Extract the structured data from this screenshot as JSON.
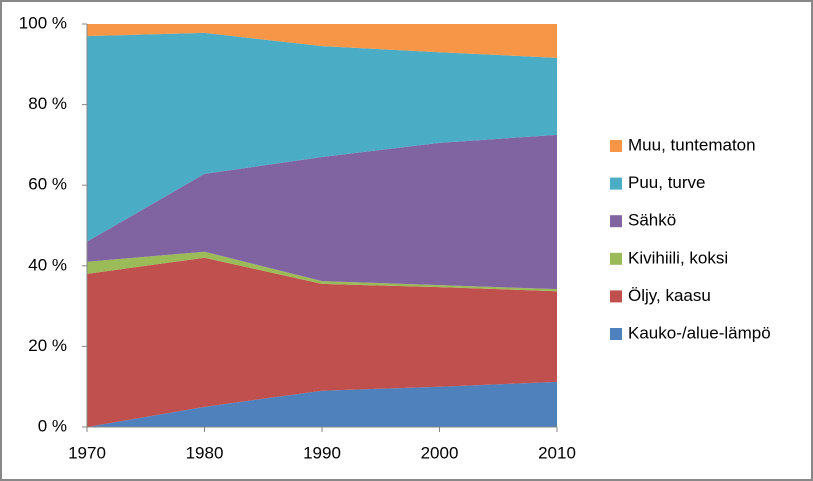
{
  "chart_data": {
    "type": "stacked-area",
    "x": [
      1970,
      1980,
      1990,
      2000,
      2010
    ],
    "xlim": [
      1970,
      2010
    ],
    "xticks": [
      1970,
      1980,
      1990,
      2000,
      2010
    ],
    "ylim": [
      0,
      100
    ],
    "yticks": [
      {
        "value": 0,
        "label": "0 %"
      },
      {
        "value": 20,
        "label": "20 %"
      },
      {
        "value": 40,
        "label": "40 %"
      },
      {
        "value": 60,
        "label": "60 %"
      },
      {
        "value": 80,
        "label": "80 %"
      },
      {
        "value": 100,
        "label": "100 %"
      }
    ],
    "grid": false,
    "legend": "right",
    "series": [
      {
        "name": "Kauko-/alue-lämpö",
        "color": "#4f81bd",
        "values": [
          0,
          5,
          9,
          10,
          11.2
        ]
      },
      {
        "name": "Öljy, kaasu",
        "color": "#c0504d",
        "values": [
          38,
          37,
          26.5,
          24.7,
          22.5
        ]
      },
      {
        "name": "Kivihiili, koksi",
        "color": "#9bbb59",
        "values": [
          3,
          1.5,
          0.7,
          0.5,
          0.5
        ]
      },
      {
        "name": "Sähkö",
        "color": "#8064a2",
        "values": [
          5,
          19.3,
          30.8,
          35.3,
          38.3
        ]
      },
      {
        "name": "Puu, turve",
        "color": "#4bacc6",
        "values": [
          51,
          35,
          27.5,
          22.5,
          19.1
        ]
      },
      {
        "name": "Muu, tuntematon",
        "color": "#f79646",
        "values": [
          3,
          2.2,
          5.5,
          7,
          8.4
        ]
      }
    ]
  }
}
